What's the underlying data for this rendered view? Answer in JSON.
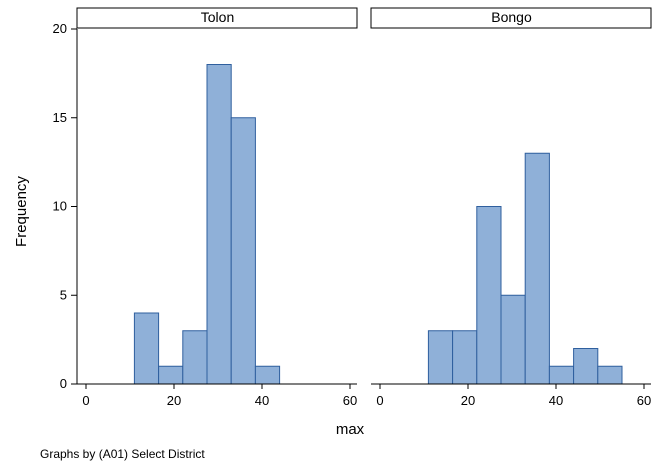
{
  "chart_data": {
    "type": "bar",
    "ylabel": "Frequency",
    "xlabel": "max",
    "ylim": [
      0,
      20
    ],
    "yticks": [
      0,
      5,
      10,
      15,
      20
    ],
    "xlim": [
      0,
      60
    ],
    "xticks": [
      0,
      20,
      40,
      60
    ],
    "bar_color": "#8fb0d8",
    "bar_edge_color": "#2f5f9e",
    "panels": [
      {
        "title": "Tolon",
        "bins": [
          {
            "x0": 11,
            "x1": 16.5,
            "count": 4
          },
          {
            "x0": 16.5,
            "x1": 22,
            "count": 1
          },
          {
            "x0": 22,
            "x1": 27.5,
            "count": 3
          },
          {
            "x0": 27.5,
            "x1": 33,
            "count": 18
          },
          {
            "x0": 33,
            "x1": 38.5,
            "count": 15
          },
          {
            "x0": 38.5,
            "x1": 44,
            "count": 1
          }
        ]
      },
      {
        "title": "Bongo",
        "bins": [
          {
            "x0": 11,
            "x1": 16.5,
            "count": 3
          },
          {
            "x0": 16.5,
            "x1": 22,
            "count": 3
          },
          {
            "x0": 22,
            "x1": 27.5,
            "count": 10
          },
          {
            "x0": 27.5,
            "x1": 33,
            "count": 5
          },
          {
            "x0": 33,
            "x1": 38.5,
            "count": 13
          },
          {
            "x0": 38.5,
            "x1": 44,
            "count": 1
          },
          {
            "x0": 44,
            "x1": 49.5,
            "count": 2
          },
          {
            "x0": 49.5,
            "x1": 55,
            "count": 1
          }
        ]
      }
    ]
  },
  "note": "Graphs by (A01) Select District"
}
